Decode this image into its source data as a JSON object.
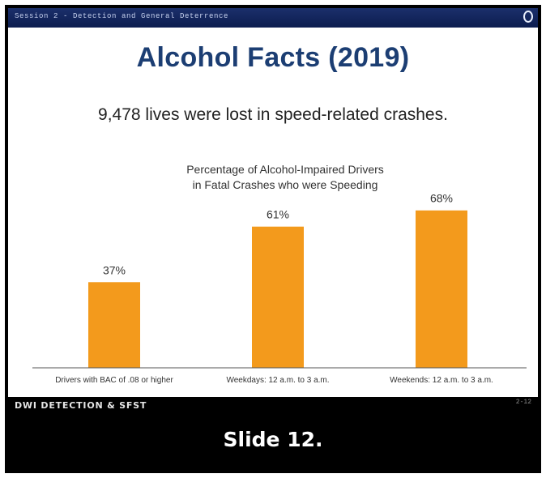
{
  "header": {
    "session_label": "Session 2 - Detection and General Deterrence"
  },
  "slide": {
    "title": "Alcohol Facts (2019)",
    "subtitle": "9,478 lives were lost in speed-related crashes."
  },
  "chart_data": {
    "type": "bar",
    "title_lines": [
      "Percentage of Alcohol-Impaired Drivers",
      "in Fatal Crashes who were Speeding"
    ],
    "categories": [
      "Drivers with BAC of .08 or higher",
      "Weekdays: 12 a.m. to 3 a.m.",
      "Weekends: 12 a.m. to 3 a.m."
    ],
    "values": [
      37,
      61,
      68
    ],
    "value_labels": [
      "37%",
      "61%",
      "68%"
    ],
    "unit": "%",
    "ylim": [
      0,
      70
    ],
    "grid": false,
    "legend": "none",
    "bar_color": "#f39a1c"
  },
  "footer": {
    "program_label": "DWI DETECTION & SFST",
    "page_number": "2-12"
  },
  "caption": "Slide 12."
}
